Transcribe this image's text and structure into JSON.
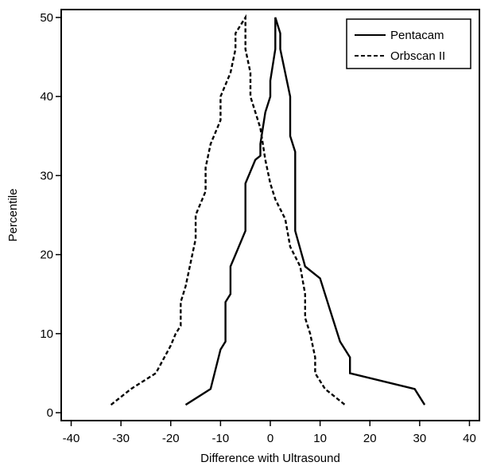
{
  "chart_data": {
    "type": "line",
    "title": "",
    "xlabel": "Difference with Ultrasound",
    "ylabel": "Percentile",
    "xlim": [
      -42,
      42
    ],
    "ylim": [
      -1,
      51
    ],
    "xticks": [
      -40,
      -30,
      -20,
      -10,
      0,
      10,
      20,
      30,
      40
    ],
    "yticks": [
      0,
      10,
      20,
      30,
      40,
      50
    ],
    "xtick_labels": [
      "-40",
      "-30",
      "-20",
      "-10",
      "0",
      "10",
      "20",
      "30",
      "40"
    ],
    "ytick_labels": [
      "0",
      "10",
      "20",
      "30",
      "40",
      "50"
    ],
    "grid": false,
    "legend_position": "top-right",
    "series": [
      {
        "name": "Pentacam",
        "style": "solid",
        "color": "#000000",
        "points": [
          [
            -17,
            1
          ],
          [
            -12,
            3
          ],
          [
            -10,
            8
          ],
          [
            -9,
            9
          ],
          [
            -9,
            14
          ],
          [
            -8,
            15
          ],
          [
            -8,
            18.5
          ],
          [
            -7,
            20
          ],
          [
            -5,
            23
          ],
          [
            -5,
            24.5
          ],
          [
            -5,
            29
          ],
          [
            -3,
            32
          ],
          [
            -2,
            32.5
          ],
          [
            -2,
            34
          ],
          [
            -1,
            38
          ],
          [
            0,
            40
          ],
          [
            0,
            42
          ],
          [
            1,
            46
          ],
          [
            1,
            48
          ],
          [
            1,
            50
          ],
          [
            2,
            48
          ],
          [
            2,
            46
          ],
          [
            4,
            40
          ],
          [
            4,
            35
          ],
          [
            5,
            33
          ],
          [
            5,
            23
          ],
          [
            7,
            18.5
          ],
          [
            10,
            17
          ],
          [
            12,
            13
          ],
          [
            14,
            9
          ],
          [
            16,
            7
          ],
          [
            16,
            5
          ],
          [
            29,
            3
          ],
          [
            31,
            1
          ]
        ]
      },
      {
        "name": "Orbscan II",
        "style": "dashed",
        "color": "#000000",
        "points": [
          [
            -32,
            1
          ],
          [
            -28,
            3
          ],
          [
            -23,
            5
          ],
          [
            -20,
            8.5
          ],
          [
            -19,
            10
          ],
          [
            -18,
            11
          ],
          [
            -18,
            14
          ],
          [
            -17,
            16
          ],
          [
            -16,
            19
          ],
          [
            -15,
            22
          ],
          [
            -15,
            25
          ],
          [
            -13,
            28
          ],
          [
            -13,
            31
          ],
          [
            -12,
            34
          ],
          [
            -10,
            37
          ],
          [
            -10,
            40
          ],
          [
            -8,
            43
          ],
          [
            -7,
            46
          ],
          [
            -7,
            48
          ],
          [
            -5,
            50
          ],
          [
            -5,
            46
          ],
          [
            -4,
            43
          ],
          [
            -4,
            40
          ],
          [
            -2,
            36
          ],
          [
            -1,
            32
          ],
          [
            0,
            29
          ],
          [
            1,
            27
          ],
          [
            3,
            24.5
          ],
          [
            4,
            21
          ],
          [
            6,
            18.5
          ],
          [
            7,
            15
          ],
          [
            7,
            12
          ],
          [
            8,
            10
          ],
          [
            9,
            7
          ],
          [
            9,
            5
          ],
          [
            11,
            3
          ],
          [
            15,
            1
          ]
        ]
      }
    ]
  }
}
